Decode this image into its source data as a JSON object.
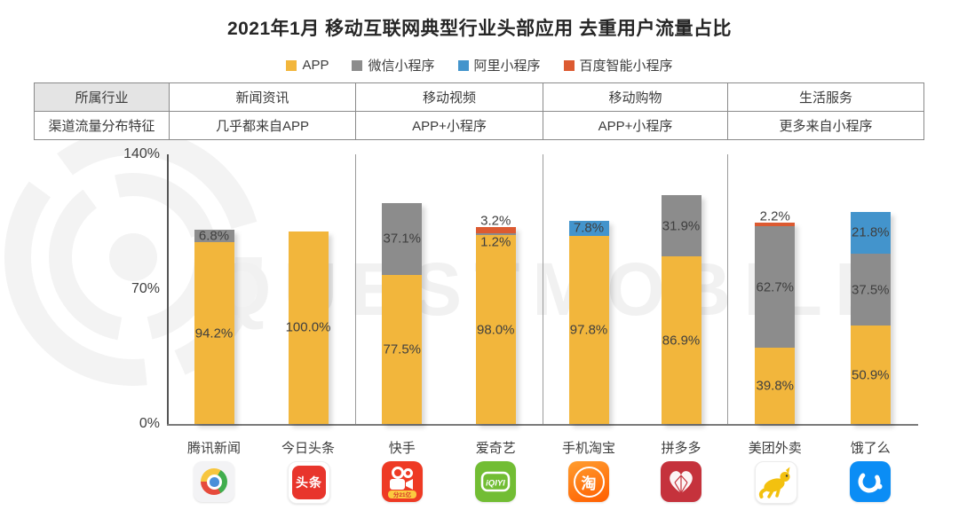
{
  "title": "2021年1月 移动互联网典型行业头部应用 去重用户流量占比",
  "legend": [
    {
      "label": "APP",
      "color": "#F2B63C"
    },
    {
      "label": "微信小程序",
      "color": "#8C8C8C"
    },
    {
      "label": "阿里小程序",
      "color": "#4394CC"
    },
    {
      "label": "百度智能小程序",
      "color": "#DC5A31"
    }
  ],
  "table": {
    "rows": [
      [
        "所属行业",
        "新闻资讯",
        "移动视频",
        "移动购物",
        "生活服务"
      ],
      [
        "渠道流量分布特征",
        "几乎都来自APP",
        "APP+小程序",
        "APP+小程序",
        "更多来自小程序"
      ]
    ]
  },
  "watermark_text": "QUESTMOBILE",
  "chart_data": {
    "type": "bar",
    "stacked": true,
    "title": "2021年1月 移动互联网典型行业头部应用 去重用户流量占比",
    "categories": [
      "腾讯新闻",
      "今日头条",
      "快手",
      "爱奇艺",
      "手机淘宝",
      "拼多多",
      "美团外卖",
      "饿了么"
    ],
    "groups": [
      {
        "label": "新闻资讯",
        "members": [
          "腾讯新闻",
          "今日头条"
        ]
      },
      {
        "label": "移动视频",
        "members": [
          "快手",
          "爱奇艺"
        ]
      },
      {
        "label": "移动购物",
        "members": [
          "手机淘宝",
          "拼多多"
        ]
      },
      {
        "label": "生活服务",
        "members": [
          "美团外卖",
          "饿了么"
        ]
      }
    ],
    "series": [
      {
        "name": "APP",
        "color": "#F2B63C",
        "values": [
          94.2,
          100.0,
          77.5,
          98.0,
          97.8,
          86.9,
          39.8,
          50.9
        ]
      },
      {
        "name": "微信小程序",
        "color": "#8C8C8C",
        "values": [
          6.8,
          0,
          37.1,
          1.2,
          0,
          31.9,
          62.7,
          37.5
        ]
      },
      {
        "name": "阿里小程序",
        "color": "#4394CC",
        "values": [
          0,
          0,
          0,
          0,
          7.8,
          0,
          0,
          21.8
        ]
      },
      {
        "name": "百度智能小程序",
        "color": "#DC5A31",
        "values": [
          0,
          0,
          0,
          3.2,
          0,
          0,
          2.2,
          0
        ]
      }
    ],
    "ylim": [
      0,
      140
    ],
    "yticks": [
      0,
      70,
      140
    ],
    "ytick_labels": [
      "0%",
      "70%",
      "140%"
    ],
    "grid": false,
    "legend_position": "top",
    "value_suffix": "%"
  },
  "icons": {
    "toutiao_text": "头条",
    "kuaishou_banner": "分21亿",
    "iqiyi_text": "iQIYI",
    "taobao_text": "淘"
  }
}
